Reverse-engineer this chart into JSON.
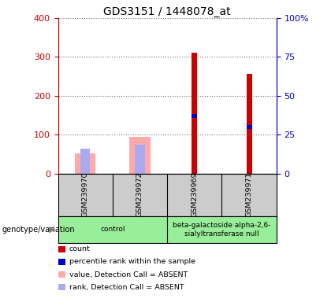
{
  "title": "GDS3151 / 1448078_at",
  "samples": [
    "GSM239970",
    "GSM239972",
    "GSM239969",
    "GSM239971"
  ],
  "count_values": [
    0,
    0,
    312,
    257
  ],
  "percentile_rank": [
    0,
    0,
    37,
    30
  ],
  "absent_value": [
    52,
    95,
    0,
    0
  ],
  "absent_rank": [
    65,
    75,
    0,
    0
  ],
  "groups": [
    {
      "label": "control",
      "samples": [
        0,
        1
      ]
    },
    {
      "label": "beta-galactoside alpha-2,6-\nsialyltransferase null",
      "samples": [
        2,
        3
      ]
    }
  ],
  "left_ylim": [
    0,
    400
  ],
  "right_ylim": [
    0,
    100
  ],
  "left_yticks": [
    0,
    100,
    200,
    300,
    400
  ],
  "right_yticks": [
    0,
    25,
    50,
    75,
    100
  ],
  "right_yticklabels": [
    "0",
    "25",
    "50",
    "75",
    "100%"
  ],
  "colors": {
    "count": "#cc0000",
    "percentile": "#0000cc",
    "absent_value": "#ffaaaa",
    "absent_rank": "#aaaaee",
    "left_axis": "#cc0000",
    "right_axis": "#0000cc",
    "grid": "#777777",
    "plot_bg": "#ffffff",
    "sample_bg": "#cccccc",
    "group_bg": "#99ee99"
  },
  "legend_items": [
    {
      "label": "count",
      "color": "#cc0000"
    },
    {
      "label": "percentile rank within the sample",
      "color": "#0000cc"
    },
    {
      "label": "value, Detection Call = ABSENT",
      "color": "#ffaaaa"
    },
    {
      "label": "rank, Detection Call = ABSENT",
      "color": "#aaaaee"
    }
  ]
}
